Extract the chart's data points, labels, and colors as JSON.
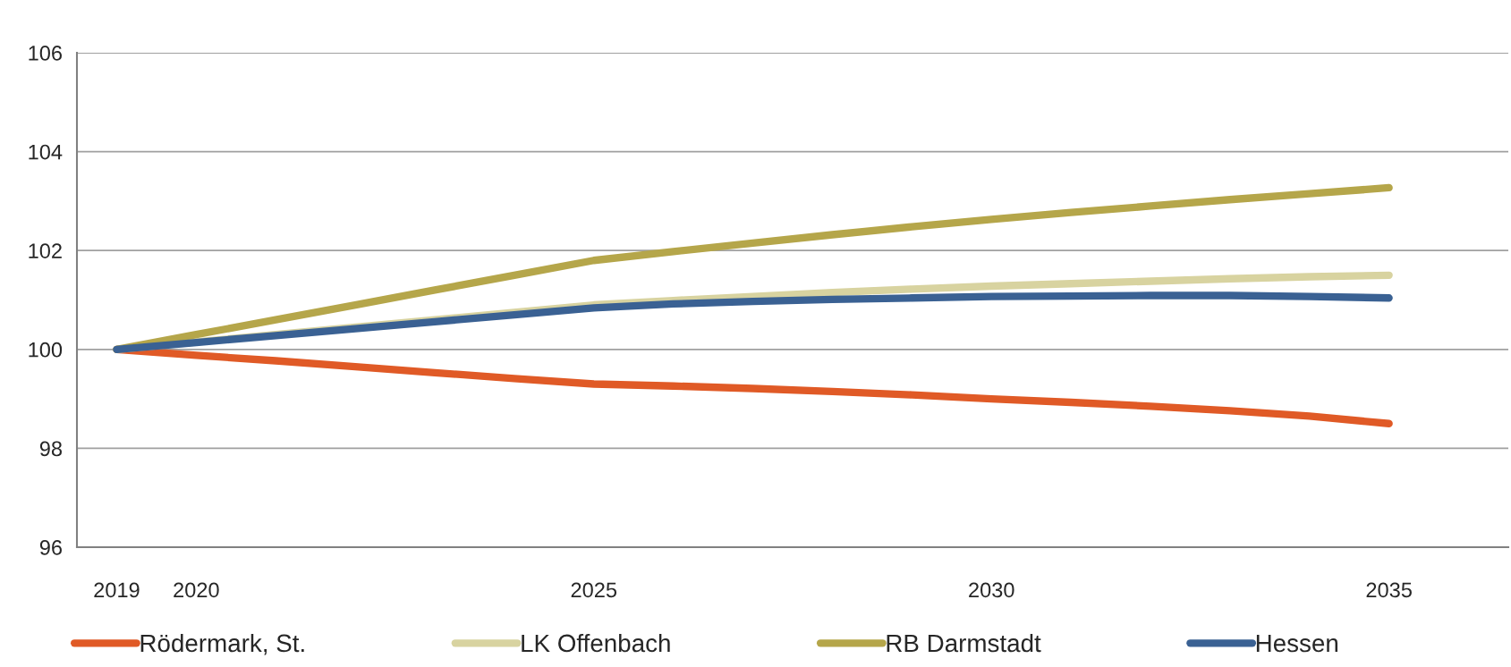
{
  "chart_data": {
    "type": "line",
    "categories": [
      "2019",
      "2020",
      null,
      null,
      null,
      null,
      "2025",
      null,
      null,
      null,
      null,
      "2030",
      null,
      null,
      null,
      null,
      "2035",
      null
    ],
    "ylim": [
      96,
      106
    ],
    "yticks": [
      96,
      98,
      100,
      102,
      104,
      106
    ],
    "grid": "y",
    "legend": "bottom",
    "marker": "none",
    "line_style": "solid",
    "series": [
      {
        "name": "Rödermark, St.",
        "color": "#e05a26",
        "values": [
          100,
          99.88,
          99.77,
          99.65,
          99.53,
          99.41,
          99.3,
          99.26,
          99.21,
          99.15,
          99.08,
          99.0,
          98.93,
          98.85,
          98.76,
          98.65,
          98.5,
          null
        ]
      },
      {
        "name": "LK Offenbach",
        "color": "#d8d3a0",
        "values": [
          100,
          100.15,
          100.3,
          100.45,
          100.6,
          100.75,
          100.9,
          100.99,
          101.07,
          101.15,
          101.22,
          101.28,
          101.33,
          101.38,
          101.43,
          101.47,
          101.5,
          null
        ]
      },
      {
        "name": "RB Darmstadt",
        "color": "#b5a64a",
        "values": [
          100,
          100.3,
          100.6,
          100.9,
          101.2,
          101.5,
          101.8,
          101.98,
          102.15,
          102.32,
          102.48,
          102.63,
          102.77,
          102.9,
          103.03,
          103.15,
          103.27,
          null
        ]
      },
      {
        "name": "Hessen",
        "color": "#3a6193",
        "values": [
          100,
          100.14,
          100.28,
          100.42,
          100.56,
          100.7,
          100.84,
          100.92,
          100.97,
          101.01,
          101.04,
          101.07,
          101.08,
          101.09,
          101.09,
          101.07,
          101.04,
          null
        ]
      }
    ]
  }
}
